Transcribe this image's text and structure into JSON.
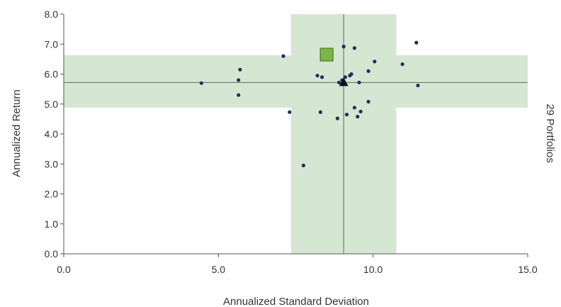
{
  "chart_data": {
    "type": "scatter",
    "xlabel": "Annualized Standard Deviation",
    "ylabel": "Annualized Return",
    "side_label": "29 Portfolios",
    "xlim": [
      0,
      15
    ],
    "ylim": [
      0,
      8
    ],
    "x_ticks": [
      "0.0",
      "5.0",
      "10.0",
      "15.0"
    ],
    "y_ticks": [
      "0.0",
      "1.0",
      "2.0",
      "3.0",
      "4.0",
      "5.0",
      "6.0",
      "7.0",
      "8.0"
    ],
    "grid": false,
    "colors": {
      "band": "#d5e7d2",
      "points": "#1f2f5e",
      "square": "#7ab648",
      "square_border": "#4e7a2c",
      "axis": "#555555",
      "crosshair": "#556b55"
    },
    "crosshair": {
      "x": 9.05,
      "y": 5.72
    },
    "bands": {
      "vertical": [
        7.35,
        10.75
      ],
      "horizontal": [
        4.88,
        6.63
      ]
    },
    "highlight_square": {
      "x": 8.5,
      "y": 6.65
    },
    "benchmark_triangle": {
      "x": 9.05,
      "y": 5.72
    },
    "points": [
      [
        4.45,
        5.7
      ],
      [
        5.7,
        6.15
      ],
      [
        5.65,
        5.8
      ],
      [
        5.65,
        5.3
      ],
      [
        7.1,
        6.6
      ],
      [
        7.3,
        4.73
      ],
      [
        7.75,
        2.95
      ],
      [
        8.2,
        5.95
      ],
      [
        8.35,
        5.9
      ],
      [
        8.3,
        4.73
      ],
      [
        8.85,
        4.52
      ],
      [
        8.9,
        5.72
      ],
      [
        9.0,
        5.8
      ],
      [
        9.05,
        6.92
      ],
      [
        9.1,
        5.9
      ],
      [
        9.15,
        4.65
      ],
      [
        9.25,
        5.95
      ],
      [
        9.3,
        6.0
      ],
      [
        9.4,
        6.87
      ],
      [
        9.4,
        4.88
      ],
      [
        9.55,
        5.72
      ],
      [
        9.5,
        4.58
      ],
      [
        9.6,
        4.75
      ],
      [
        9.85,
        5.08
      ],
      [
        9.85,
        6.1
      ],
      [
        10.05,
        6.42
      ],
      [
        10.95,
        6.33
      ],
      [
        11.4,
        7.05
      ],
      [
        11.45,
        5.62
      ]
    ]
  }
}
